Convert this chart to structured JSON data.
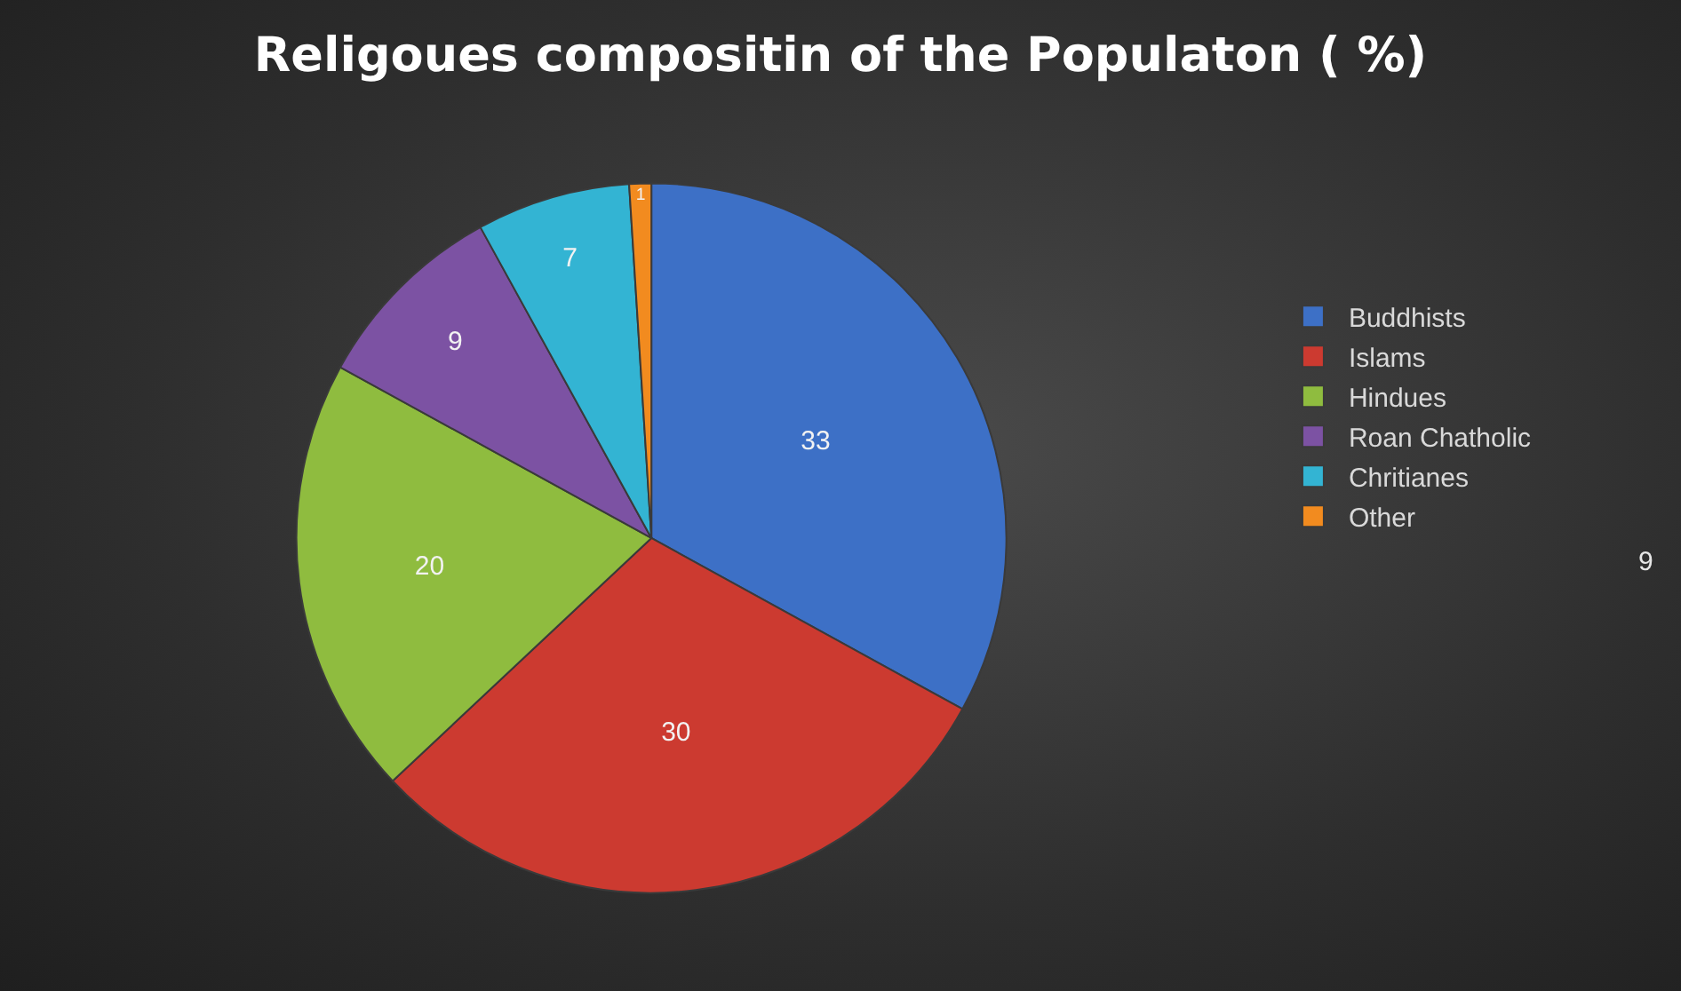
{
  "chart_data": {
    "type": "pie",
    "title": "Religoues compositin of the Populaton ( %)",
    "categories": [
      "Buddhists",
      "Islams",
      "Hindues",
      "Roan Chatholic",
      "Chritianes",
      "Other"
    ],
    "values": [
      33,
      30,
      20,
      9,
      7,
      1
    ],
    "colors": [
      "#3d70c6",
      "#cc3a30",
      "#8fbc3f",
      "#7c52a3",
      "#33b4d3",
      "#f28b1f"
    ],
    "data_labels": true,
    "legend": "right",
    "annotations": [
      "9"
    ]
  }
}
